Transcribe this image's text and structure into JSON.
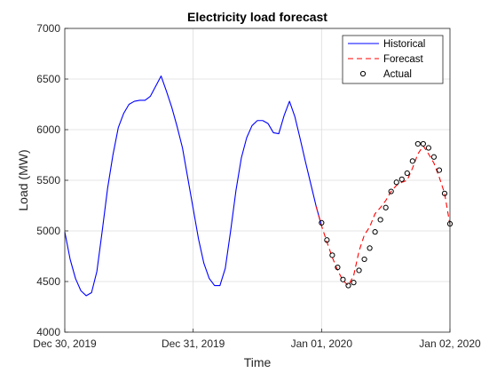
{
  "chart_data": {
    "type": "line",
    "title": "Electricity load forecast",
    "xlabel": "Time",
    "ylabel": "Load (MW)",
    "ylim": [
      4000,
      7000
    ],
    "xlim": [
      "2019-12-30 00:00",
      "2020-01-02 00:00"
    ],
    "yticks": [
      "4000",
      "4500",
      "5000",
      "5500",
      "6000",
      "6500",
      "7000"
    ],
    "xticks": [
      "Dec 30, 2019",
      "Dec 31, 2019",
      "Jan 01, 2020",
      "Jan 02, 2020"
    ],
    "grid": true,
    "legend_position": "top-right",
    "series": [
      {
        "name": "Historical",
        "style": "solid",
        "color": "#0000ff",
        "points": [
          [
            "2019-12-30 00:00",
            4990
          ],
          [
            "2019-12-30 01:00",
            4720
          ],
          [
            "2019-12-30 02:00",
            4530
          ],
          [
            "2019-12-30 03:00",
            4410
          ],
          [
            "2019-12-30 04:00",
            4360
          ],
          [
            "2019-12-30 05:00",
            4390
          ],
          [
            "2019-12-30 06:00",
            4600
          ],
          [
            "2019-12-30 07:00",
            5000
          ],
          [
            "2019-12-30 08:00",
            5420
          ],
          [
            "2019-12-30 09:00",
            5750
          ],
          [
            "2019-12-30 10:00",
            6020
          ],
          [
            "2019-12-30 11:00",
            6160
          ],
          [
            "2019-12-30 12:00",
            6250
          ],
          [
            "2019-12-30 13:00",
            6280
          ],
          [
            "2019-12-30 14:00",
            6290
          ],
          [
            "2019-12-30 15:00",
            6290
          ],
          [
            "2019-12-30 16:00",
            6330
          ],
          [
            "2019-12-30 17:00",
            6430
          ],
          [
            "2019-12-30 18:00",
            6530
          ],
          [
            "2019-12-30 19:00",
            6380
          ],
          [
            "2019-12-30 20:00",
            6220
          ],
          [
            "2019-12-30 21:00",
            6030
          ],
          [
            "2019-12-30 22:00",
            5820
          ],
          [
            "2019-12-30 23:00",
            5520
          ],
          [
            "2019-12-31 00:00",
            5220
          ],
          [
            "2019-12-31 01:00",
            4920
          ],
          [
            "2019-12-31 02:00",
            4680
          ],
          [
            "2019-12-31 03:00",
            4530
          ],
          [
            "2019-12-31 04:00",
            4460
          ],
          [
            "2019-12-31 05:00",
            4460
          ],
          [
            "2019-12-31 06:00",
            4630
          ],
          [
            "2019-12-31 07:00",
            5000
          ],
          [
            "2019-12-31 08:00",
            5400
          ],
          [
            "2019-12-31 09:00",
            5720
          ],
          [
            "2019-12-31 10:00",
            5920
          ],
          [
            "2019-12-31 11:00",
            6040
          ],
          [
            "2019-12-31 12:00",
            6090
          ],
          [
            "2019-12-31 13:00",
            6090
          ],
          [
            "2019-12-31 14:00",
            6060
          ],
          [
            "2019-12-31 15:00",
            5970
          ],
          [
            "2019-12-31 16:00",
            5960
          ],
          [
            "2019-12-31 17:00",
            6140
          ],
          [
            "2019-12-31 18:00",
            6280
          ],
          [
            "2019-12-31 19:00",
            6130
          ],
          [
            "2019-12-31 20:00",
            5910
          ],
          [
            "2019-12-31 21:00",
            5680
          ],
          [
            "2019-12-31 22:00",
            5460
          ],
          [
            "2019-12-31 23:00",
            5240
          ],
          [
            "2020-01-01 00:00",
            5050
          ]
        ]
      },
      {
        "name": "Forecast",
        "style": "dashed",
        "color": "#ff0000",
        "points": [
          [
            "2019-12-31 23:00",
            5240
          ],
          [
            "2020-01-01 00:00",
            5050
          ],
          [
            "2020-01-01 01:00",
            4890
          ],
          [
            "2020-01-01 02:00",
            4740
          ],
          [
            "2020-01-01 03:00",
            4610
          ],
          [
            "2020-01-01 04:00",
            4510
          ],
          [
            "2020-01-01 05:00",
            4460
          ],
          [
            "2020-01-01 06:00",
            4560
          ],
          [
            "2020-01-01 07:00",
            4800
          ],
          [
            "2020-01-01 08:00",
            4960
          ],
          [
            "2020-01-01 09:00",
            5040
          ],
          [
            "2020-01-01 10:00",
            5170
          ],
          [
            "2020-01-01 11:00",
            5230
          ],
          [
            "2020-01-01 12:00",
            5300
          ],
          [
            "2020-01-01 13:00",
            5390
          ],
          [
            "2020-01-01 14:00",
            5450
          ],
          [
            "2020-01-01 15:00",
            5480
          ],
          [
            "2020-01-01 16:00",
            5500
          ],
          [
            "2020-01-01 17:00",
            5620
          ],
          [
            "2020-01-01 18:00",
            5760
          ],
          [
            "2020-01-01 19:00",
            5840
          ],
          [
            "2020-01-01 20:00",
            5760
          ],
          [
            "2020-01-01 21:00",
            5670
          ],
          [
            "2020-01-01 22:00",
            5530
          ],
          [
            "2020-01-01 23:00",
            5370
          ],
          [
            "2020-01-02 00:00",
            5060
          ]
        ]
      },
      {
        "name": "Actual",
        "style": "markers",
        "color": "#000000",
        "points": [
          [
            "2020-01-01 00:00",
            5080
          ],
          [
            "2020-01-01 01:00",
            4910
          ],
          [
            "2020-01-01 02:00",
            4760
          ],
          [
            "2020-01-01 03:00",
            4640
          ],
          [
            "2020-01-01 04:00",
            4520
          ],
          [
            "2020-01-01 05:00",
            4460
          ],
          [
            "2020-01-01 06:00",
            4490
          ],
          [
            "2020-01-01 07:00",
            4610
          ],
          [
            "2020-01-01 08:00",
            4720
          ],
          [
            "2020-01-01 09:00",
            4830
          ],
          [
            "2020-01-01 10:00",
            4990
          ],
          [
            "2020-01-01 11:00",
            5110
          ],
          [
            "2020-01-01 12:00",
            5230
          ],
          [
            "2020-01-01 13:00",
            5390
          ],
          [
            "2020-01-01 14:00",
            5480
          ],
          [
            "2020-01-01 15:00",
            5510
          ],
          [
            "2020-01-01 16:00",
            5570
          ],
          [
            "2020-01-01 17:00",
            5690
          ],
          [
            "2020-01-01 18:00",
            5860
          ],
          [
            "2020-01-01 19:00",
            5860
          ],
          [
            "2020-01-01 20:00",
            5820
          ],
          [
            "2020-01-01 21:00",
            5730
          ],
          [
            "2020-01-01 22:00",
            5600
          ],
          [
            "2020-01-01 23:00",
            5370
          ],
          [
            "2020-01-02 00:00",
            5070
          ]
        ]
      }
    ]
  }
}
